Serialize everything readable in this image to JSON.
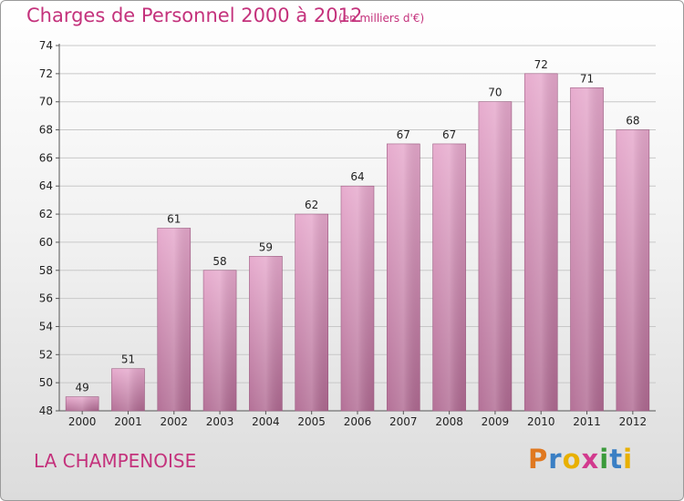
{
  "chart_data": {
    "type": "bar",
    "title": "Charges de Personnel 2000 à 2012",
    "subtitle": "(en milliers d'€)",
    "categories": [
      "2000",
      "2001",
      "2002",
      "2003",
      "2004",
      "2005",
      "2006",
      "2007",
      "2008",
      "2009",
      "2010",
      "2011",
      "2012"
    ],
    "values": [
      49,
      51,
      61,
      58,
      59,
      62,
      64,
      67,
      67,
      70,
      72,
      71,
      68
    ],
    "ylim": [
      48,
      74
    ],
    "yticks": [
      48,
      50,
      52,
      54,
      56,
      58,
      60,
      62,
      64,
      66,
      68,
      70,
      72,
      74
    ],
    "grid": true,
    "bar_color": "#c870a0",
    "text_color": "#c4327c"
  },
  "footer": {
    "commune": "LA CHAMPENOISE",
    "logo_letters": [
      "P",
      "r",
      "o",
      "x",
      "i",
      "t",
      "i"
    ],
    "logo_colors": [
      "#e07820",
      "#3a7fc4",
      "#e8b000",
      "#d23a8e",
      "#3a9a3a",
      "#3a7fc4",
      "#e8b000"
    ]
  }
}
